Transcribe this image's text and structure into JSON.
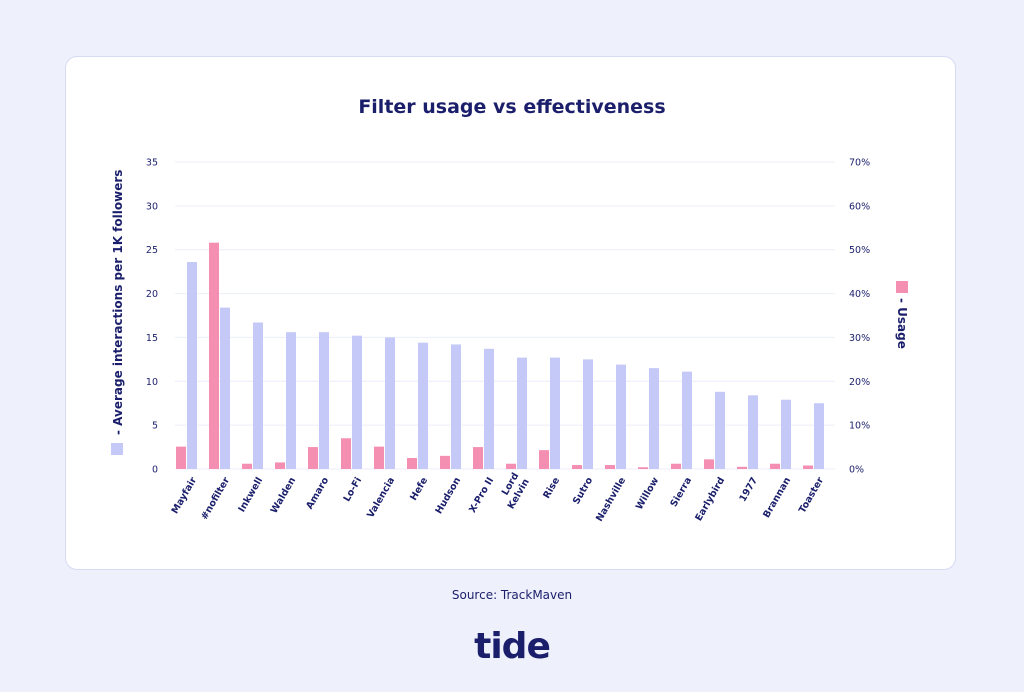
{
  "chart_data": {
    "type": "bar",
    "title": "Filter usage vs effectiveness",
    "categories": [
      "Mayfair",
      "#nofilter",
      "Inkwell",
      "Walden",
      "Amaro",
      "Lo-Fi",
      "Valencia",
      "Hefe",
      "Hudson",
      "X-Pro II",
      "Lord Kelvin",
      "Rise",
      "Sutro",
      "Nashville",
      "Willow",
      "Sierra",
      "Earlybird",
      "1977",
      "Brannan",
      "Toaster"
    ],
    "series": [
      {
        "name": "- Average interactions per 1K followers",
        "axis": "left",
        "color": "#c5c9f7",
        "values": [
          23.6,
          18.4,
          16.7,
          15.6,
          15.6,
          15.2,
          15.0,
          14.4,
          14.2,
          13.7,
          12.7,
          12.7,
          12.5,
          11.9,
          11.5,
          11.1,
          8.8,
          8.4,
          7.9,
          7.5
        ]
      },
      {
        "name": "- Usage",
        "axis": "right",
        "color": "#f48fb1",
        "values": [
          5.1,
          51.6,
          1.2,
          1.5,
          5.0,
          7.0,
          5.1,
          2.5,
          3.0,
          5.0,
          1.2,
          4.3,
          0.9,
          0.9,
          0.4,
          1.2,
          2.2,
          0.5,
          1.2,
          0.8
        ]
      }
    ],
    "yleft": {
      "ylim": [
        0,
        35
      ],
      "ticks": [
        "0",
        "5",
        "10",
        "15",
        "20",
        "25",
        "30",
        "35"
      ]
    },
    "yright": {
      "ylim": [
        0,
        70
      ],
      "ticks": [
        "0%",
        "10%",
        "20%",
        "30%",
        "40%",
        "50%",
        "60%",
        "70%"
      ]
    },
    "ylabel_left": "- Average interactions per 1K followers",
    "ylabel_right": "- Usage",
    "grid": true
  },
  "source": "Source: TrackMaven",
  "logo": "tide"
}
